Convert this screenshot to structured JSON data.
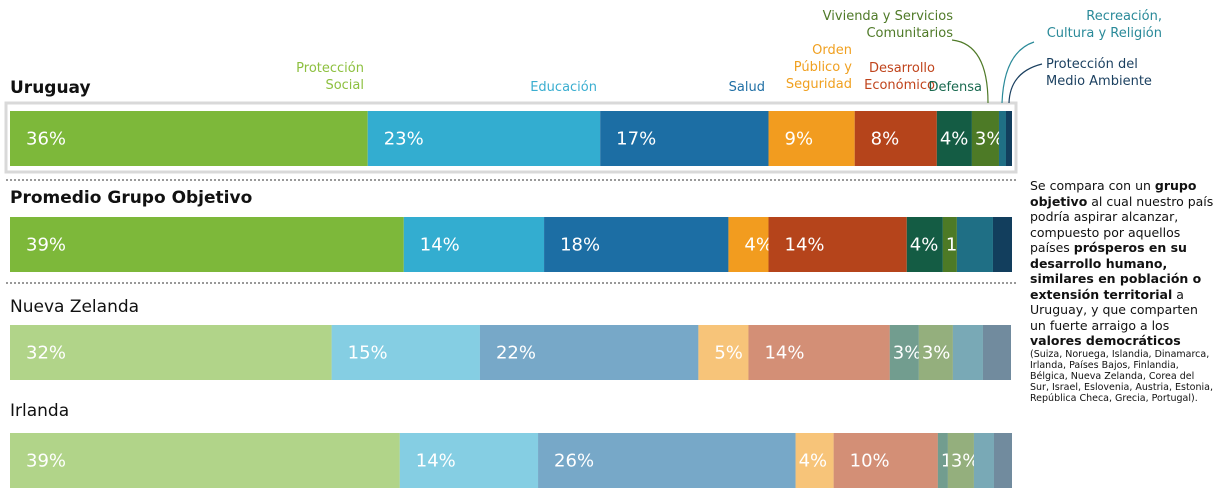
{
  "chart_data": {
    "type": "bar",
    "orientation": "horizontal",
    "stacked": true,
    "categories": [
      "Uruguay",
      "Promedio Grupo Objetivo",
      "Nueva Zelanda",
      "Irlanda"
    ],
    "category_bold": [
      true,
      true,
      false,
      false
    ],
    "category_opacity": [
      1,
      1,
      0.6,
      0.6
    ],
    "xlim": [
      0,
      100
    ],
    "series": [
      {
        "name": "Protección\nSocial",
        "color": "#7db83a",
        "values": [
          35.7,
          39.3,
          32.1,
          38.9
        ],
        "value_labels": [
          "36%",
          "39%",
          "32%",
          "39%"
        ]
      },
      {
        "name": "Educación",
        "color": "#33add0",
        "values": [
          23.2,
          14,
          14.8,
          13.8
        ],
        "value_labels": [
          "23%",
          "14%",
          "15%",
          "14%"
        ]
      },
      {
        "name": "Salud",
        "color": "#1c6ea4",
        "values": [
          16.8,
          18.4,
          21.8,
          25.7
        ],
        "value_labels": [
          "17%",
          "18%",
          "22%",
          "26%"
        ]
      },
      {
        "name": "Orden\nPúblico y\nSeguridad",
        "color": "#f29c1f",
        "values": [
          8.6,
          4,
          5,
          3.8
        ],
        "value_labels": [
          "9%",
          "4%",
          "5%",
          "4%"
        ]
      },
      {
        "name": "Desarrollo\nEconómico",
        "color": "#b5441b",
        "values": [
          8.2,
          13.8,
          14.1,
          10.4
        ],
        "value_labels": [
          "8%",
          "14%",
          "14%",
          "10%"
        ]
      },
      {
        "name": "Defensa",
        "color": "#145c44",
        "values": [
          3.5,
          3.6,
          2.9,
          1
        ],
        "value_labels": [
          "4%",
          "4%",
          "3%",
          "1%"
        ]
      },
      {
        "name": "Vivienda y Servicios\nComunitarios",
        "color": "#4d7a26",
        "values": [
          2.7,
          1.4,
          3.4,
          2.6
        ],
        "value_labels": [
          "3%",
          "1%",
          "3%",
          "3%"
        ]
      },
      {
        "name": "Recreación,\nCultura y Religión",
        "color": "#1f6f85",
        "values": [
          0.7,
          3.6,
          3,
          2
        ],
        "value_labels": [
          null,
          null,
          null,
          null
        ]
      },
      {
        "name": "Protección del\nMedio Ambiente",
        "color": "#123e5d",
        "values": [
          0.6,
          1.9,
          2.8,
          1.8
        ],
        "value_labels": [
          null,
          null,
          null,
          null
        ]
      }
    ],
    "note": [
      {
        "text": "Se compara con un ",
        "bold": false
      },
      {
        "text": "grupo objetivo",
        "bold": true
      },
      {
        "text": " al cual nuestro país podría aspirar alcanzar, compuesto por aquellos países ",
        "bold": false
      },
      {
        "text": "prósperos en su desarrollo humano, similares en población o extensión territorial",
        "bold": true
      },
      {
        "text": " a Uruguay, y que comparten un fuerte arraigo a los ",
        "bold": false
      },
      {
        "text": "valores democráticos",
        "bold": true
      }
    ],
    "note_small": "(Suiza, Noruega, Islandia, Dinamarca, Irlanda, Países Bajos, Finlandia, Bélgica, Nueva Zelanda, Corea del Sur, Israel, Eslovenia, Austria, Estonia, República Checa, Grecia, Portugal)."
  }
}
